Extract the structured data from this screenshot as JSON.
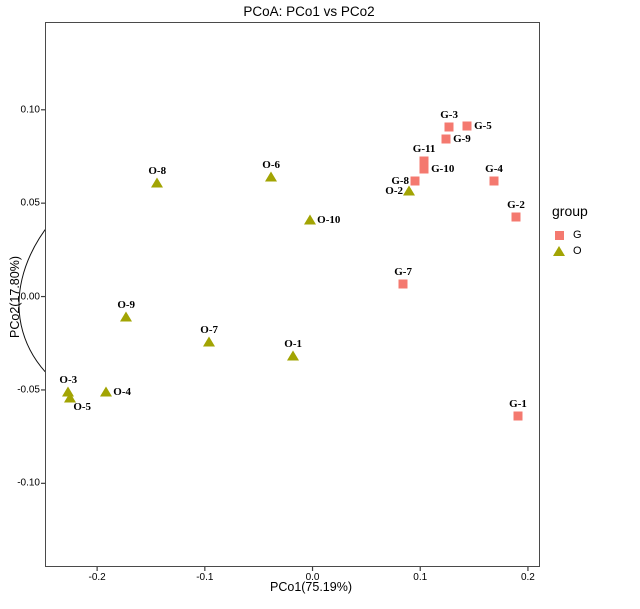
{
  "title": "PCoA: PCo1 vs PCo2",
  "legend": {
    "title": "group",
    "items": [
      {
        "name": "G",
        "marker": "square",
        "color": "#F4796F"
      },
      {
        "name": "O",
        "marker": "triangle",
        "color": "#A2A403"
      }
    ]
  },
  "chart_data": {
    "type": "scatter",
    "title": "PCoA: PCo1 vs PCo2",
    "xlabel": "PCo1(75.19%)",
    "ylabel": "PCo2(17.80%)",
    "xlim": [
      -0.2484,
      0.2112
    ],
    "ylim": [
      -0.1448,
      0.147
    ],
    "grid": false,
    "legend_position": "right",
    "axis_lines_at_zero": true,
    "x_ticks": [
      {
        "value": -0.2,
        "label": "-0.2"
      },
      {
        "value": -0.1,
        "label": "-0.1"
      },
      {
        "value": 0.0,
        "label": "0.0"
      },
      {
        "value": 0.1,
        "label": "0.1"
      },
      {
        "value": 0.2,
        "label": "0.2"
      }
    ],
    "y_ticks": [
      {
        "value": 0.1,
        "label": "0.10"
      },
      {
        "value": 0.05,
        "label": "0.05"
      },
      {
        "value": 0.0,
        "label": "0.00"
      },
      {
        "value": -0.05,
        "label": "-0.05"
      },
      {
        "value": -0.1,
        "label": "-0.10"
      }
    ],
    "series": [
      {
        "name": "G",
        "marker": "square",
        "color": "#F4796F",
        "points": [
          {
            "label": "G-1",
            "x": 0.1908,
            "y": -0.064,
            "label_pos": "above"
          },
          {
            "label": "G-2",
            "x": 0.1889,
            "y": 0.0426,
            "label_pos": "above"
          },
          {
            "label": "G-3",
            "x": 0.1268,
            "y": 0.0908,
            "label_pos": "above"
          },
          {
            "label": "G-4",
            "x": 0.1685,
            "y": 0.0618,
            "label_pos": "above"
          },
          {
            "label": "G-5",
            "x": 0.1435,
            "y": 0.0913,
            "label_pos": "right"
          },
          {
            "label": "G-7",
            "x": 0.0841,
            "y": 0.0067,
            "label_pos": "above"
          },
          {
            "label": "G-8",
            "x": 0.0952,
            "y": 0.0618,
            "label_pos": "left"
          },
          {
            "label": "G-9",
            "x": 0.124,
            "y": 0.0843,
            "label_pos": "right"
          },
          {
            "label": "G-10",
            "x": 0.1036,
            "y": 0.0683,
            "label_pos": "right"
          },
          {
            "label": "G-11",
            "x": 0.1036,
            "y": 0.0726,
            "label_pos": "above"
          }
        ]
      },
      {
        "name": "O",
        "marker": "triangle",
        "color": "#A2A403",
        "points": [
          {
            "label": "O-1",
            "x": -0.018,
            "y": -0.0319,
            "label_pos": "above"
          },
          {
            "label": "O-2",
            "x": 0.0896,
            "y": 0.0565,
            "label_pos": "left"
          },
          {
            "label": "O-3",
            "x": -0.2268,
            "y": -0.0511,
            "label_pos": "above"
          },
          {
            "label": "O-4",
            "x": -0.1915,
            "y": -0.0511,
            "label_pos": "right"
          },
          {
            "label": "O-5",
            "x": -0.225,
            "y": -0.0543,
            "label_pos": "below"
          },
          {
            "label": "O-6",
            "x": -0.0384,
            "y": 0.064,
            "label_pos": "above"
          },
          {
            "label": "O-7",
            "x": -0.096,
            "y": -0.0244,
            "label_pos": "above"
          },
          {
            "label": "O-8",
            "x": -0.1442,
            "y": 0.0608,
            "label_pos": "above"
          },
          {
            "label": "O-9",
            "x": -0.173,
            "y": -0.011,
            "label_pos": "above"
          },
          {
            "label": "O-10",
            "x": -0.0022,
            "y": 0.041,
            "label_pos": "right"
          }
        ]
      }
    ],
    "ellipses": [
      {
        "group": "O",
        "cx": -0.095,
        "cy": 0.0099,
        "rx": 0.181,
        "ry": 0.0739,
        "rotate_deg": -16
      },
      {
        "group": "G",
        "cx": 0.1416,
        "cy": 0.0019,
        "rx": 0.0687,
        "ry": 0.1098,
        "rotate_deg": 0
      }
    ]
  }
}
